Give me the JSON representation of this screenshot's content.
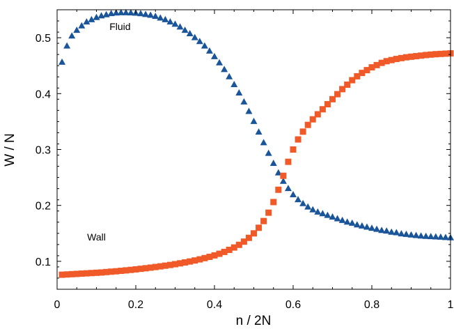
{
  "chart_data": {
    "type": "scatter",
    "title": "",
    "xlabel": "n / 2N",
    "ylabel": "W / N",
    "xlim": [
      0,
      1
    ],
    "ylim": [
      0.05,
      0.55
    ],
    "x_ticks": [
      0,
      0.2,
      0.4,
      0.6,
      0.8,
      1
    ],
    "x_tick_labels": [
      "0",
      "0.2",
      "0.4",
      "0.6",
      "0.8",
      "1"
    ],
    "y_ticks": [
      0.1,
      0.2,
      0.3,
      0.4,
      0.5
    ],
    "y_tick_labels": [
      "0.1",
      "0.2",
      "0.3",
      "0.4",
      "0.5"
    ],
    "grid": false,
    "annotations": [
      {
        "text": "Fluid",
        "x": 0.16,
        "y": 0.514
      },
      {
        "text": "Wall",
        "x": 0.1,
        "y": 0.137
      }
    ],
    "series": [
      {
        "marker": "triangle",
        "color": "#1a5599",
        "x": [
          0.0125,
          0.025,
          0.0375,
          0.05,
          0.0625,
          0.075,
          0.0875,
          0.1,
          0.1125,
          0.125,
          0.1375,
          0.15,
          0.1625,
          0.175,
          0.1875,
          0.2,
          0.2125,
          0.225,
          0.2375,
          0.25,
          0.2625,
          0.275,
          0.2875,
          0.3,
          0.3125,
          0.325,
          0.3375,
          0.35,
          0.3625,
          0.375,
          0.3875,
          0.4,
          0.4125,
          0.425,
          0.4375,
          0.45,
          0.4625,
          0.475,
          0.4875,
          0.5,
          0.5125,
          0.525,
          0.5375,
          0.55,
          0.5625,
          0.575,
          0.5875,
          0.6,
          0.6125,
          0.625,
          0.6375,
          0.65,
          0.6625,
          0.675,
          0.6875,
          0.7,
          0.7125,
          0.725,
          0.7375,
          0.75,
          0.7625,
          0.775,
          0.7875,
          0.8,
          0.8125,
          0.825,
          0.8375,
          0.85,
          0.8625,
          0.875,
          0.8875,
          0.9,
          0.9125,
          0.925,
          0.9375,
          0.95,
          0.9625,
          0.975,
          0.9875,
          1.0
        ],
        "y": [
          0.456,
          0.485,
          0.503,
          0.513,
          0.521,
          0.528,
          0.532,
          0.536,
          0.539,
          0.541,
          0.543,
          0.544,
          0.5445,
          0.5445,
          0.5443,
          0.5437,
          0.5428,
          0.5415,
          0.54,
          0.538,
          0.535,
          0.532,
          0.528,
          0.524,
          0.519,
          0.513,
          0.507,
          0.5,
          0.493,
          0.485,
          0.476,
          0.466,
          0.455,
          0.443,
          0.43,
          0.416,
          0.401,
          0.385,
          0.368,
          0.35,
          0.331,
          0.312,
          0.293,
          0.275,
          0.258,
          0.243,
          0.23,
          0.219,
          0.21,
          0.203,
          0.197,
          0.192,
          0.188,
          0.185,
          0.182,
          0.179,
          0.176,
          0.173,
          0.17,
          0.168,
          0.165,
          0.163,
          0.161,
          0.159,
          0.157,
          0.155,
          0.154,
          0.152,
          0.151,
          0.149,
          0.148,
          0.147,
          0.146,
          0.145,
          0.1445,
          0.144,
          0.1435,
          0.143,
          0.1425,
          0.142
        ]
      },
      {
        "marker": "square",
        "color": "#f05a28",
        "x": [
          0.0125,
          0.025,
          0.0375,
          0.05,
          0.0625,
          0.075,
          0.0875,
          0.1,
          0.1125,
          0.125,
          0.1375,
          0.15,
          0.1625,
          0.175,
          0.1875,
          0.2,
          0.2125,
          0.225,
          0.2375,
          0.25,
          0.2625,
          0.275,
          0.2875,
          0.3,
          0.3125,
          0.325,
          0.3375,
          0.35,
          0.3625,
          0.375,
          0.3875,
          0.4,
          0.4125,
          0.425,
          0.4375,
          0.45,
          0.4625,
          0.475,
          0.4875,
          0.5,
          0.5125,
          0.525,
          0.5375,
          0.55,
          0.5625,
          0.575,
          0.5875,
          0.6,
          0.6125,
          0.625,
          0.6375,
          0.65,
          0.6625,
          0.675,
          0.6875,
          0.7,
          0.7125,
          0.725,
          0.7375,
          0.75,
          0.7625,
          0.775,
          0.7875,
          0.8,
          0.8125,
          0.825,
          0.8375,
          0.85,
          0.8625,
          0.875,
          0.8875,
          0.9,
          0.9125,
          0.925,
          0.9375,
          0.95,
          0.9625,
          0.975,
          0.9875,
          1.0
        ],
        "y": [
          0.076,
          0.0765,
          0.077,
          0.0775,
          0.078,
          0.0785,
          0.079,
          0.0795,
          0.08,
          0.0808,
          0.0815,
          0.0822,
          0.083,
          0.0838,
          0.0847,
          0.0856,
          0.0866,
          0.0876,
          0.0887,
          0.0898,
          0.091,
          0.0922,
          0.0935,
          0.0949,
          0.0964,
          0.098,
          0.0997,
          0.1015,
          0.1035,
          0.1057,
          0.108,
          0.1106,
          0.1135,
          0.1168,
          0.1205,
          0.1247,
          0.1295,
          0.1352,
          0.142,
          0.15,
          0.16,
          0.172,
          0.187,
          0.206,
          0.228,
          0.253,
          0.278,
          0.3,
          0.318,
          0.332,
          0.344,
          0.354,
          0.363,
          0.372,
          0.381,
          0.39,
          0.399,
          0.408,
          0.416,
          0.424,
          0.431,
          0.437,
          0.442,
          0.447,
          0.451,
          0.455,
          0.458,
          0.46,
          0.462,
          0.4635,
          0.465,
          0.466,
          0.467,
          0.468,
          0.469,
          0.4698,
          0.4705,
          0.471,
          0.4715,
          0.472
        ]
      }
    ]
  }
}
